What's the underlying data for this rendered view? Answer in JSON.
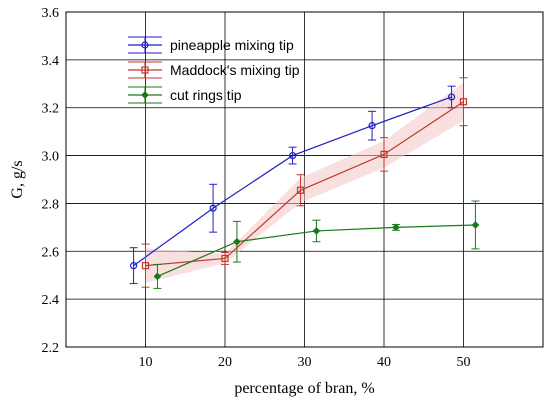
{
  "chart_data": {
    "type": "line",
    "xlabel": "percentage of bran, %",
    "ylabel": "G, g/s",
    "xlim": [
      0,
      60
    ],
    "ylim": [
      2.2,
      3.6
    ],
    "xticks": [
      10,
      20,
      30,
      40,
      50
    ],
    "yticks": [
      2.2,
      2.4,
      2.6,
      2.8,
      3.0,
      3.2,
      3.4,
      3.6
    ],
    "grid": true,
    "legend_position": "top-left",
    "series": [
      {
        "name": "pineapple mixing tip",
        "color": "#1f1fc8",
        "marker": "circle",
        "x": [
          8.5,
          18.5,
          28.5,
          38.5,
          48.5
        ],
        "y": [
          2.54,
          2.78,
          3.0,
          3.125,
          3.245
        ],
        "err": [
          0.075,
          0.1,
          0.035,
          0.06,
          0.045
        ]
      },
      {
        "name": "Maddock's mixing tip",
        "color": "#c0392b",
        "marker": "square",
        "x": [
          10,
          20,
          29.5,
          40,
          50
        ],
        "y": [
          2.54,
          2.57,
          2.855,
          3.005,
          3.225
        ],
        "err": [
          0.09,
          0.025,
          0.065,
          0.07,
          0.1
        ]
      },
      {
        "name": "cut rings tip",
        "color": "#1a7a1a",
        "marker": "diamond",
        "x": [
          11.5,
          21.5,
          31.5,
          41.5,
          51.5
        ],
        "y": [
          2.495,
          2.64,
          2.685,
          2.7,
          2.71
        ],
        "err": [
          0.05,
          0.085,
          0.045,
          0.012,
          0.1
        ]
      }
    ]
  }
}
